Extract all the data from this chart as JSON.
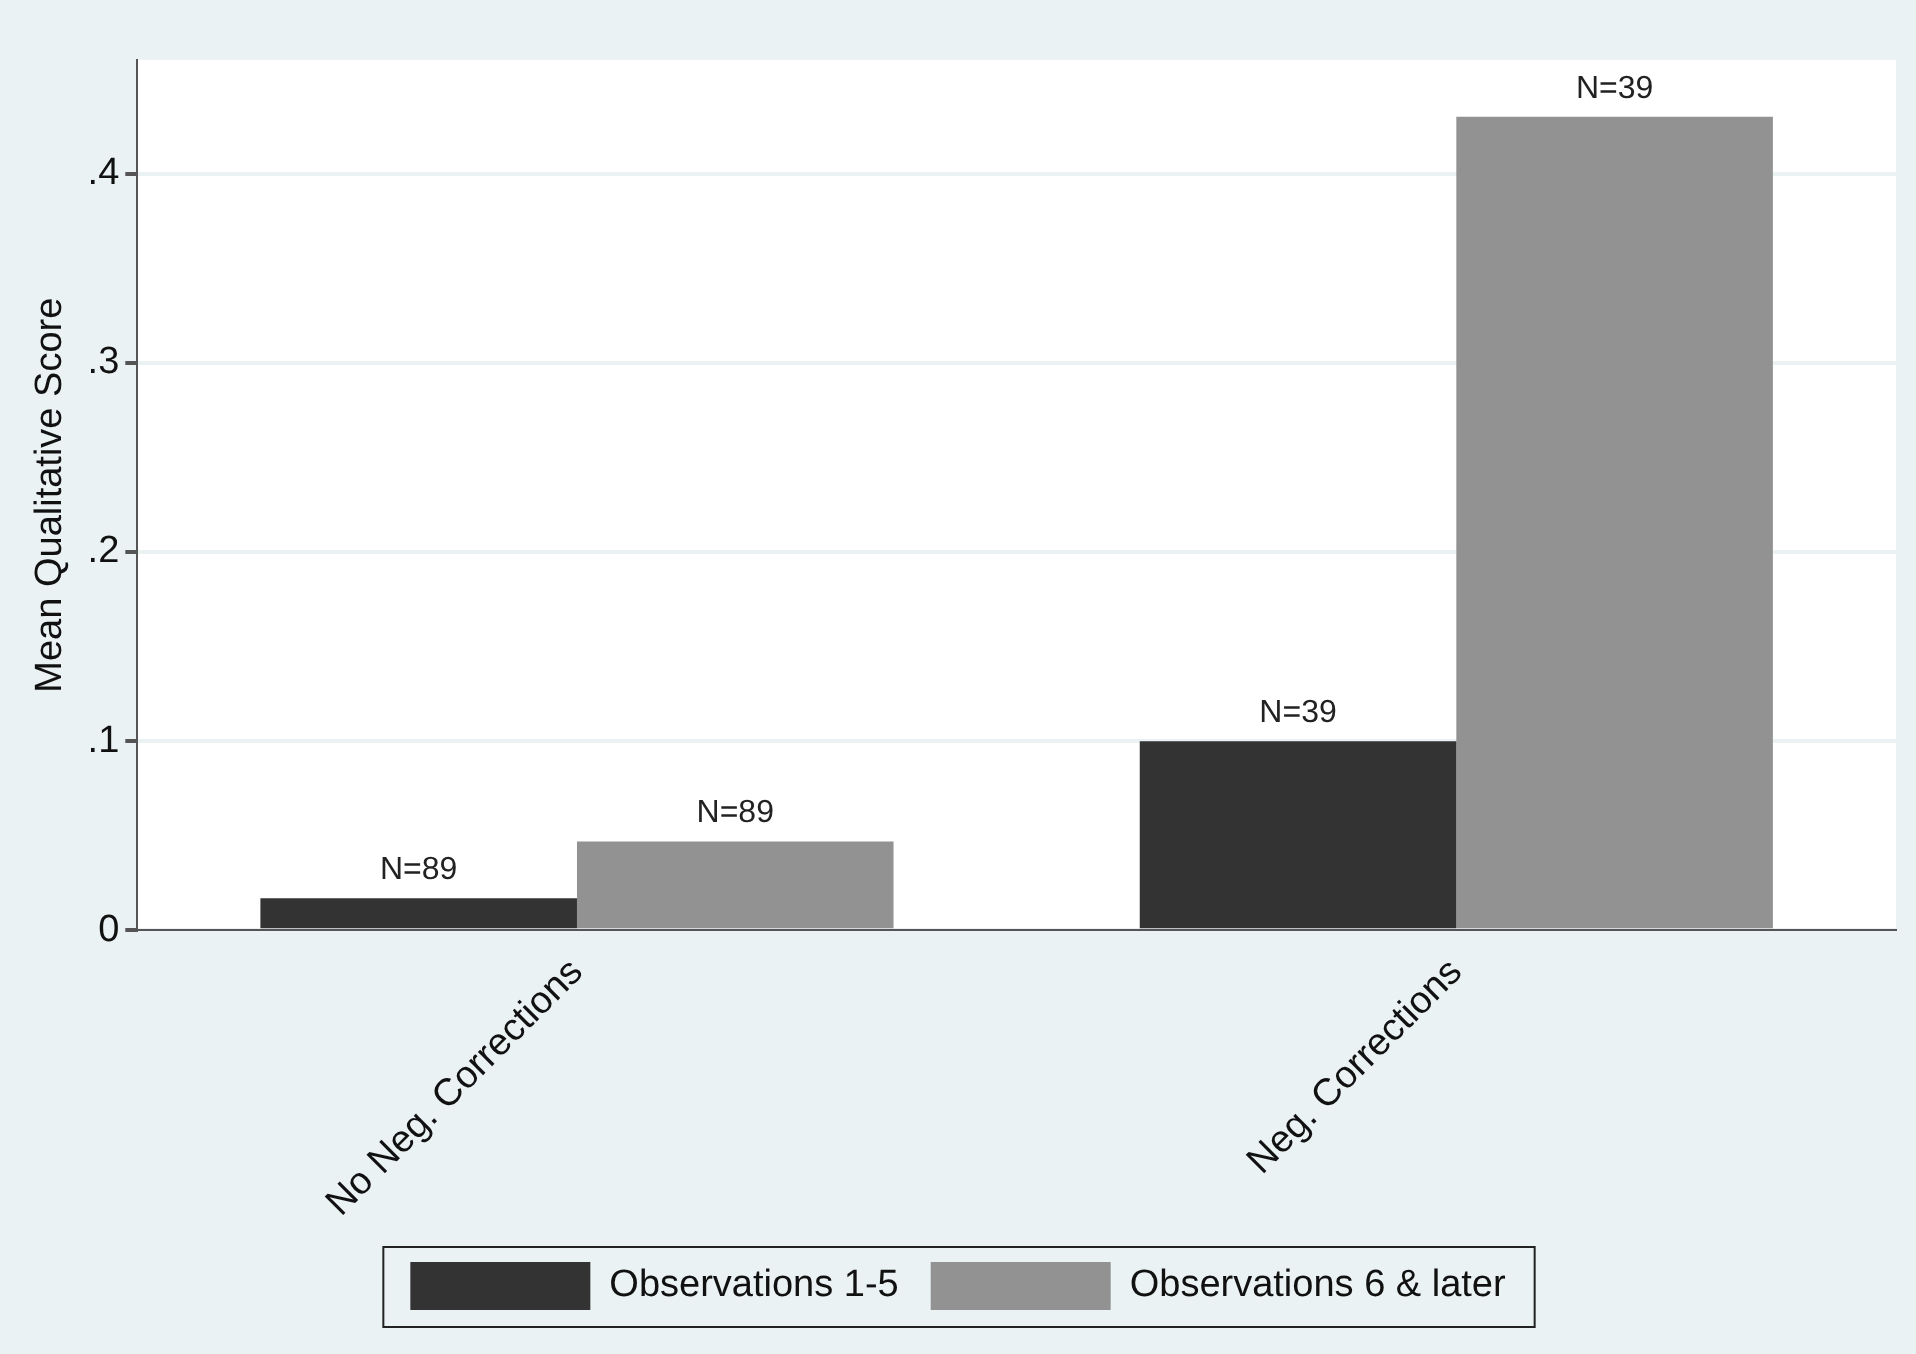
{
  "chart_data": {
    "type": "bar",
    "ylabel": "Mean Qualitative Score",
    "categories": [
      "No Neg. Corrections",
      "Neg. Corrections"
    ],
    "series": [
      {
        "name": "Observations 1-5",
        "color": "#333333",
        "values": [
          0.017,
          0.1
        ]
      },
      {
        "name": "Observations 6 & later",
        "color": "#929292",
        "values": [
          0.047,
          0.43
        ]
      }
    ],
    "annotations": [
      "N=89",
      "N=89",
      "N=39",
      "N=39"
    ],
    "ylim": [
      0,
      0.46
    ],
    "yticks": [
      0,
      {
        "value": 0.1,
        "label": ".1"
      },
      {
        "value": 0.2,
        "label": ".2"
      },
      {
        "value": 0.3,
        "label": ".3"
      },
      {
        "value": 0.4,
        "label": ".4"
      }
    ],
    "grid": "y",
    "legend": "bottom"
  }
}
